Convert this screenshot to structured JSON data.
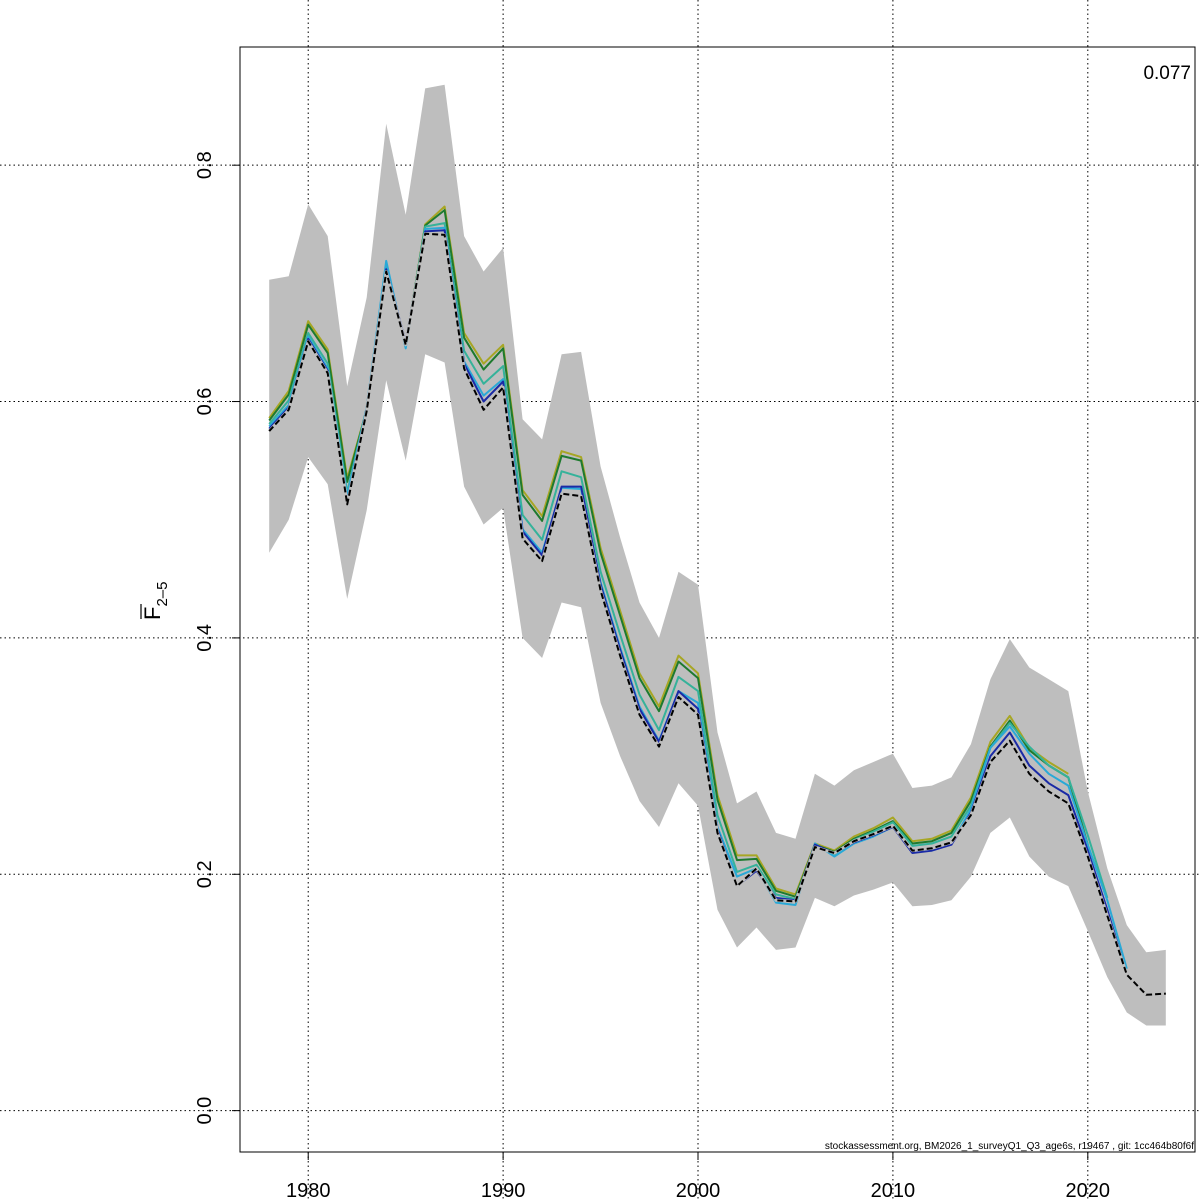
{
  "chart_data": {
    "type": "line",
    "title": "",
    "xlabel": "",
    "ylabel": {
      "main": "F",
      "subscript": "2–5"
    },
    "xlim": [
      1976.5,
      2025.5
    ],
    "ylim": [
      -0.035,
      0.9
    ],
    "x_ticks": [
      1980,
      1990,
      2000,
      2010,
      2020
    ],
    "y_ticks": [
      0.0,
      0.2,
      0.4,
      0.6,
      0.8
    ],
    "grid": true,
    "annotation": "0.077",
    "footer": "stockassessment.org, BM2026_1_surveyQ1_Q3_age6s, r19467 , git: 1cc464b80f6f",
    "confidence_band": {
      "color": "#bebebe",
      "x": [
        1978,
        1979,
        1980,
        1981,
        1982,
        1983,
        1984,
        1985,
        1986,
        1987,
        1988,
        1989,
        1990,
        1991,
        1992,
        1993,
        1994,
        1995,
        1996,
        1997,
        1998,
        1999,
        2000,
        2001,
        2002,
        2003,
        2004,
        2005,
        2006,
        2007,
        2008,
        2009,
        2010,
        2011,
        2012,
        2013,
        2014,
        2015,
        2016,
        2017,
        2018,
        2019,
        2020,
        2021,
        2022,
        2023,
        2024
      ],
      "upper": [
        0.703,
        0.706,
        0.767,
        0.74,
        0.613,
        0.688,
        0.835,
        0.758,
        0.865,
        0.868,
        0.74,
        0.71,
        0.73,
        0.585,
        0.568,
        0.64,
        0.642,
        0.545,
        0.485,
        0.43,
        0.4,
        0.456,
        0.445,
        0.32,
        0.26,
        0.27,
        0.235,
        0.23,
        0.285,
        0.275,
        0.288,
        0.295,
        0.302,
        0.273,
        0.275,
        0.282,
        0.31,
        0.365,
        0.399,
        0.375,
        0.365,
        0.355,
        0.27,
        0.205,
        0.157,
        0.134,
        0.136
      ],
      "lower": [
        0.472,
        0.5,
        0.553,
        0.53,
        0.433,
        0.508,
        0.618,
        0.55,
        0.64,
        0.633,
        0.528,
        0.496,
        0.51,
        0.4,
        0.383,
        0.43,
        0.426,
        0.345,
        0.3,
        0.262,
        0.24,
        0.277,
        0.258,
        0.17,
        0.138,
        0.155,
        0.136,
        0.138,
        0.18,
        0.173,
        0.182,
        0.187,
        0.193,
        0.173,
        0.174,
        0.178,
        0.198,
        0.235,
        0.248,
        0.215,
        0.198,
        0.19,
        0.152,
        0.113,
        0.083,
        0.072,
        0.072
      ]
    },
    "series": [
      {
        "color": "#000000",
        "dashed": true,
        "x": [
          1978,
          1979,
          1980,
          1981,
          1982,
          1983,
          1984,
          1985,
          1986,
          1987,
          1988,
          1989,
          1990,
          1991,
          1992,
          1993,
          1994,
          1995,
          1996,
          1997,
          1998,
          1999,
          2000,
          2001,
          2002,
          2003,
          2004,
          2005,
          2006,
          2007,
          2008,
          2009,
          2010,
          2011,
          2012,
          2013,
          2014,
          2015,
          2016,
          2017,
          2018,
          2019,
          2020,
          2021,
          2022,
          2023,
          2024
        ],
        "values": [
          0.575,
          0.593,
          0.651,
          0.624,
          0.513,
          0.592,
          0.71,
          0.648,
          0.742,
          0.741,
          0.628,
          0.593,
          0.612,
          0.484,
          0.465,
          0.522,
          0.52,
          0.44,
          0.385,
          0.335,
          0.308,
          0.35,
          0.335,
          0.235,
          0.19,
          0.205,
          0.178,
          0.177,
          0.223,
          0.218,
          0.228,
          0.234,
          0.241,
          0.22,
          0.222,
          0.227,
          0.25,
          0.295,
          0.313,
          0.285,
          0.27,
          0.26,
          0.215,
          0.165,
          0.115,
          0.098,
          0.099
        ]
      },
      {
        "color": "#1a2aa6",
        "x": [
          1978,
          1979,
          1980,
          1981,
          1982,
          1983,
          1984,
          1985,
          1986,
          1987,
          1988,
          1989,
          1990,
          1991,
          1992,
          1993,
          1994,
          1995,
          1996,
          1997,
          1998,
          1999,
          2000,
          2001,
          2002,
          2003,
          2004,
          2005,
          2006,
          2007,
          2008,
          2009,
          2010,
          2011,
          2012,
          2013,
          2014,
          2015,
          2016,
          2017,
          2018,
          2019,
          2020,
          2021,
          2022,
          2023
        ],
        "values": [
          0.577,
          0.595,
          0.653,
          0.626,
          0.515,
          0.594,
          0.712,
          0.65,
          0.744,
          0.745,
          0.632,
          0.6,
          0.617,
          0.49,
          0.47,
          0.528,
          0.528,
          0.445,
          0.39,
          0.34,
          0.312,
          0.355,
          0.34,
          0.238,
          0.19,
          0.203,
          0.18,
          0.178,
          0.225,
          0.218,
          0.227,
          0.233,
          0.24,
          0.218,
          0.22,
          0.225,
          0.252,
          0.3,
          0.32,
          0.292,
          0.277,
          0.267,
          0.22,
          0.17,
          0.115,
          0.098
        ]
      },
      {
        "color": "#29a9d7",
        "x": [
          1978,
          1979,
          1980,
          1981,
          1982,
          1983,
          1984,
          1985,
          1986,
          1987,
          1988,
          1989,
          1990,
          1991,
          1992,
          1993,
          1994,
          1995,
          1996,
          1997,
          1998,
          1999,
          2000,
          2001,
          2002,
          2003,
          2004,
          2005,
          2006,
          2007,
          2008,
          2009,
          2010,
          2011,
          2012,
          2013,
          2014,
          2015,
          2016,
          2017,
          2018,
          2019,
          2020,
          2021,
          2022
        ],
        "values": [
          0.579,
          0.597,
          0.655,
          0.628,
          0.52,
          0.595,
          0.719,
          0.645,
          0.746,
          0.747,
          0.634,
          0.605,
          0.619,
          0.492,
          0.472,
          0.527,
          0.526,
          0.447,
          0.392,
          0.342,
          0.313,
          0.355,
          0.345,
          0.24,
          0.198,
          0.205,
          0.176,
          0.174,
          0.226,
          0.215,
          0.226,
          0.232,
          0.24,
          0.22,
          0.22,
          0.226,
          0.255,
          0.307,
          0.325,
          0.302,
          0.285,
          0.275,
          0.225,
          0.178,
          0.12
        ]
      },
      {
        "color": "#35b29a",
        "x": [
          1978,
          1979,
          1980,
          1981,
          1982,
          1983,
          1984,
          1985,
          1986,
          1987,
          1988,
          1989,
          1990,
          1991,
          1992,
          1993,
          1994,
          1995,
          1996,
          1997,
          1998,
          1999,
          2000,
          2001,
          2002,
          2003,
          2004,
          2005,
          2006,
          2007,
          2008,
          2009,
          2010,
          2011,
          2012,
          2013,
          2014,
          2015,
          2016,
          2017,
          2018,
          2019,
          2020,
          2021
        ],
        "values": [
          0.581,
          0.601,
          0.658,
          0.632,
          0.523,
          0.595,
          0.713,
          0.648,
          0.748,
          0.751,
          0.643,
          0.615,
          0.63,
          0.504,
          0.483,
          0.541,
          0.536,
          0.456,
          0.403,
          0.352,
          0.322,
          0.367,
          0.355,
          0.25,
          0.202,
          0.208,
          0.183,
          0.179,
          0.224,
          0.217,
          0.229,
          0.236,
          0.244,
          0.224,
          0.226,
          0.232,
          0.258,
          0.307,
          0.328,
          0.308,
          0.292,
          0.282,
          0.233,
          0.18
        ]
      },
      {
        "color": "#1e7a2e",
        "x": [
          1978,
          1979,
          1980,
          1981,
          1982,
          1983,
          1984,
          1985,
          1986,
          1987,
          1988,
          1989,
          1990,
          1991,
          1992,
          1993,
          1994,
          1995,
          1996,
          1997,
          1998,
          1999,
          2000,
          2001,
          2002,
          2003,
          2004,
          2005,
          2006,
          2007,
          2008,
          2009,
          2010,
          2011,
          2012,
          2013,
          2014,
          2015,
          2016,
          2017,
          2018,
          2019,
          2020
        ],
        "values": [
          0.584,
          0.606,
          0.665,
          0.641,
          0.532,
          0.593,
          0.712,
          0.648,
          0.749,
          0.762,
          0.654,
          0.627,
          0.645,
          0.521,
          0.499,
          0.554,
          0.55,
          0.472,
          0.419,
          0.366,
          0.338,
          0.38,
          0.366,
          0.263,
          0.212,
          0.213,
          0.186,
          0.181,
          0.225,
          0.219,
          0.23,
          0.237,
          0.245,
          0.226,
          0.228,
          0.235,
          0.262,
          0.308,
          0.33,
          0.305,
          0.292,
          0.282,
          0.225
        ]
      },
      {
        "color": "#a7a624",
        "x": [
          1978,
          1979,
          1980,
          1981,
          1982,
          1983,
          1984,
          1985,
          1986,
          1987,
          1988,
          1989,
          1990,
          1991,
          1992,
          1993,
          1994,
          1995,
          1996,
          1997,
          1998,
          1999,
          2000,
          2001,
          2002,
          2003,
          2004,
          2005,
          2006,
          2007,
          2008,
          2009,
          2010,
          2011,
          2012,
          2013,
          2014,
          2015,
          2016,
          2017,
          2018,
          2019
        ],
        "values": [
          0.586,
          0.609,
          0.668,
          0.644,
          0.535,
          0.593,
          0.714,
          0.647,
          0.75,
          0.765,
          0.658,
          0.632,
          0.648,
          0.525,
          0.503,
          0.558,
          0.553,
          0.476,
          0.423,
          0.37,
          0.342,
          0.385,
          0.37,
          0.267,
          0.216,
          0.216,
          0.188,
          0.183,
          0.226,
          0.22,
          0.232,
          0.239,
          0.248,
          0.228,
          0.23,
          0.237,
          0.265,
          0.312,
          0.334,
          0.307,
          0.295,
          0.285
        ]
      }
    ]
  }
}
